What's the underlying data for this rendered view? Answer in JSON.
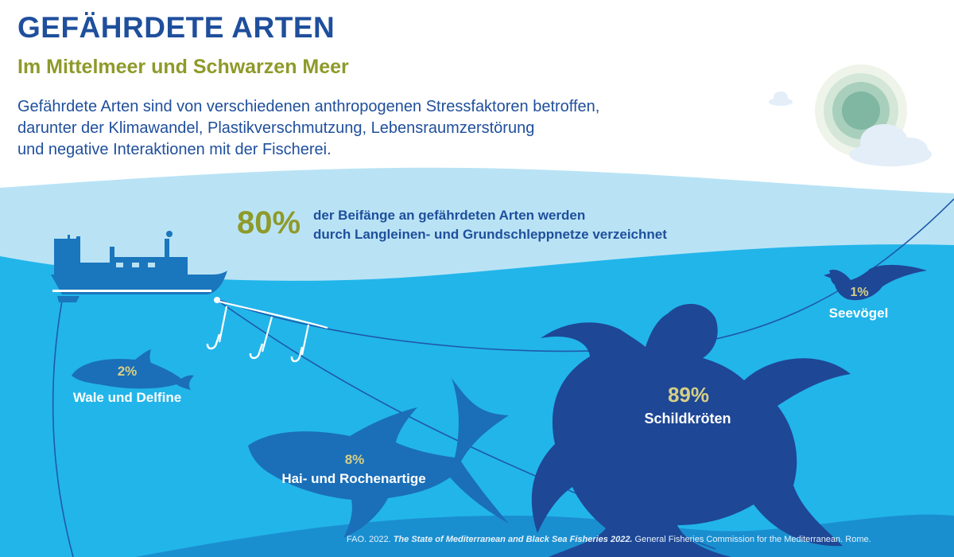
{
  "header": {
    "title": "GEFÄHRDETE ARTEN",
    "subtitle": "Im Mittelmeer und  Schwarzen Meer"
  },
  "intro": {
    "line1": "Gefährdete Arten sind von verschiedenen anthropogenen Stressfaktoren betroffen,",
    "line2": "darunter der Klimawandel, Plastikverschmutzung, Lebensraumzerstörung",
    "line3": "und negative Interaktionen mit der Fischerei."
  },
  "bycatch": {
    "percent": "80%",
    "line1": "der Beifänge an gefährdeten Arten werden",
    "line2": "durch Langleinen- und Grundschleppnetze verzeichnet"
  },
  "species": {
    "whales": {
      "percent": "2%",
      "label": "Wale und Delfine"
    },
    "sharks": {
      "percent": "8%",
      "label": "Hai- und  Rochenartige"
    },
    "turtles": {
      "percent": "89%",
      "label": "Schildkröten"
    },
    "seabirds": {
      "percent": "1%",
      "label": "Seevögel"
    }
  },
  "source": {
    "prefix": "FAO. 2022. ",
    "title": "The State of Mediterranean and Black Sea Fisheries 2022.",
    "suffix": " General Fisheries Commission for the Mediterranean. Rome."
  },
  "colors": {
    "title_blue": "#1f4f9c",
    "accent_olive": "#8e9a2a",
    "sea_light": "#b9e3f5",
    "sea": "#22b5ea",
    "sea_deep": "#1a8fd0",
    "silhouette": "#1e4796",
    "silhouette_mid": "#1a6fb8",
    "percent_gold": "#d6cf86"
  },
  "icons": [
    "sun-icon",
    "cloud-icon",
    "fishing-boat-icon",
    "fishing-hook-icon",
    "dolphin-icon",
    "shark-icon",
    "sea-turtle-icon",
    "seabird-icon"
  ]
}
